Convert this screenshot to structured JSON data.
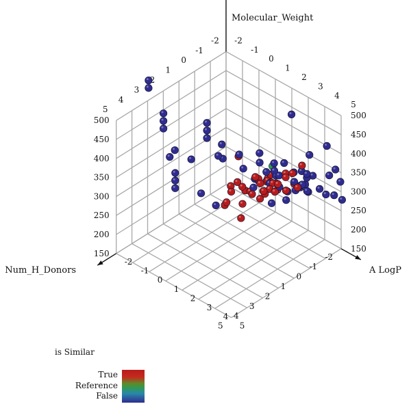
{
  "chart_data": {
    "type": "scatter",
    "projection": "3d",
    "axes": {
      "x": {
        "label": "A LogP",
        "ticks": [
          -2,
          -1,
          0,
          1,
          2,
          3,
          4,
          5
        ]
      },
      "y": {
        "label": "Num_H_Donors",
        "ticks": [
          -2,
          -1,
          0,
          1,
          2,
          3,
          4,
          5
        ]
      },
      "z": {
        "label": "Molecular_Weight",
        "ticks": [
          150,
          200,
          250,
          300,
          350,
          400,
          450,
          500
        ]
      }
    },
    "color_legend": {
      "title": "is Similar",
      "labels": [
        "True",
        "Reference",
        "False"
      ],
      "colors": {
        "true": "#b81c1c",
        "reference": "#2f9a52",
        "false": "#2f2c90"
      }
    },
    "series": [
      {
        "name": "True",
        "points": [
          [
            1.2,
            -1.3,
            261
          ],
          [
            1.7,
            -1.4,
            241
          ],
          [
            0.5,
            -0.6,
            231
          ],
          [
            1.8,
            -0.8,
            261
          ],
          [
            3.0,
            -1.6,
            331
          ],
          [
            0.6,
            0.0,
            271
          ],
          [
            1.6,
            -1.1,
            266
          ],
          [
            1.1,
            -1.3,
            251
          ],
          [
            1.3,
            -1.4,
            271
          ],
          [
            1.5,
            -0.2,
            301
          ],
          [
            2.6,
            -1.0,
            271
          ],
          [
            0.7,
            0.5,
            261
          ],
          [
            1.2,
            -1.3,
            256
          ],
          [
            1.8,
            -1.0,
            271
          ],
          [
            2.2,
            -1.4,
            286
          ],
          [
            2.0,
            -0.2,
            276
          ],
          [
            1.9,
            -1.1,
            271
          ],
          [
            1.5,
            -0.4,
            291
          ],
          [
            2.1,
            -1.5,
            291
          ],
          [
            2.4,
            -0.5,
            276
          ],
          [
            1.2,
            0.4,
            201
          ],
          [
            0.7,
            0.8,
            241
          ],
          [
            2.8,
            -1.2,
            316
          ],
          [
            3.0,
            -1.1,
            296
          ],
          [
            2.3,
            -0.8,
            286
          ],
          [
            1.7,
            -0.3,
            286
          ],
          [
            2.7,
            -0.9,
            276
          ],
          [
            3.3,
            -1.0,
            296
          ],
          [
            0.5,
            0.7,
            226
          ],
          [
            1.3,
            -0.2,
            251
          ],
          [
            1.0,
            -0.4,
            246
          ],
          [
            0.1,
            -0.1,
            246
          ],
          [
            -0.1,
            -0.8,
            301
          ],
          [
            1.7,
            -0.6,
            251
          ],
          [
            0.8,
            -0.1,
            261
          ],
          [
            1.1,
            0.2,
            231
          ],
          [
            1.6,
            -0.6,
            256
          ],
          [
            1.5,
            -0.5,
            236
          ]
        ]
      },
      {
        "name": "Reference",
        "points": [
          [
            1.3,
            -1.5,
            291
          ]
        ]
      },
      {
        "name": "False",
        "points": [
          [
            -2.8,
            2.1,
            511
          ],
          [
            -2.8,
            2.1,
            491
          ],
          [
            -1.8,
            2.2,
            451
          ],
          [
            -1.8,
            2.2,
            431
          ],
          [
            -1.8,
            2.2,
            411
          ],
          [
            -1.8,
            1.8,
            326
          ],
          [
            -1.3,
            2.0,
            361
          ],
          [
            -0.3,
            1.0,
            431
          ],
          [
            -0.3,
            1.0,
            411
          ],
          [
            -0.3,
            1.0,
            391
          ],
          [
            0.7,
            1.1,
            401
          ],
          [
            -0.3,
            2.0,
            361
          ],
          [
            0.2,
            0.8,
            351
          ],
          [
            0.8,
            0.1,
            351
          ],
          [
            0.0,
            0.3,
            326
          ],
          [
            -0.8,
            2.5,
            326
          ],
          [
            -0.8,
            2.5,
            306
          ],
          [
            -0.8,
            2.5,
            286
          ],
          [
            0.3,
            2.0,
            286
          ],
          [
            1.2,
            2.0,
            276
          ],
          [
            2.7,
            -3.5,
            326
          ],
          [
            3.7,
            -3.0,
            301
          ],
          [
            4.0,
            -3.0,
            276
          ],
          [
            4.0,
            -2.6,
            251
          ],
          [
            3.5,
            -2.2,
            266
          ],
          [
            2.5,
            -2.6,
            321
          ],
          [
            3.8,
            -2.5,
            301
          ],
          [
            2.8,
            -2.5,
            276
          ],
          [
            4.2,
            -2.9,
            236
          ],
          [
            3.6,
            -2.5,
            246
          ],
          [
            3.2,
            -1.7,
            301
          ],
          [
            3.0,
            -1.5,
            281
          ],
          [
            2.2,
            -1.0,
            271
          ],
          [
            1.8,
            -1.4,
            281
          ],
          [
            2.6,
            -2.0,
            296
          ],
          [
            1.6,
            -1.4,
            276
          ],
          [
            2.8,
            -0.8,
            256
          ],
          [
            2.3,
            -0.4,
            246
          ],
          [
            2.6,
            -1.1,
            266
          ],
          [
            3.5,
            -1.4,
            281
          ],
          [
            3.1,
            -1.7,
            281
          ],
          [
            3.2,
            -1.4,
            291
          ],
          [
            0.8,
            -1.2,
            321
          ],
          [
            1.7,
            -1.2,
            296
          ],
          [
            1.4,
            -1.5,
            301
          ],
          [
            0.1,
            -0.9,
            271
          ],
          [
            0.8,
            -0.9,
            261
          ],
          [
            1.3,
            -0.6,
            276
          ],
          [
            2.9,
            -1.3,
            271
          ],
          [
            3.1,
            -1.0,
            306
          ],
          [
            2.9,
            -1.6,
            271
          ],
          [
            1.1,
            -0.5,
            256
          ],
          [
            1.5,
            -0.9,
            296
          ],
          [
            3.2,
            -1.7,
            311
          ],
          [
            1.6,
            -2.4,
            411
          ],
          [
            1.0,
            -1.0,
            306
          ],
          [
            1.7,
            -0.9,
            271
          ],
          [
            3.0,
            -2.0,
            251
          ],
          [
            2.2,
            -1.3,
            326
          ],
          [
            2.6,
            -1.5,
            306
          ]
        ]
      }
    ]
  }
}
